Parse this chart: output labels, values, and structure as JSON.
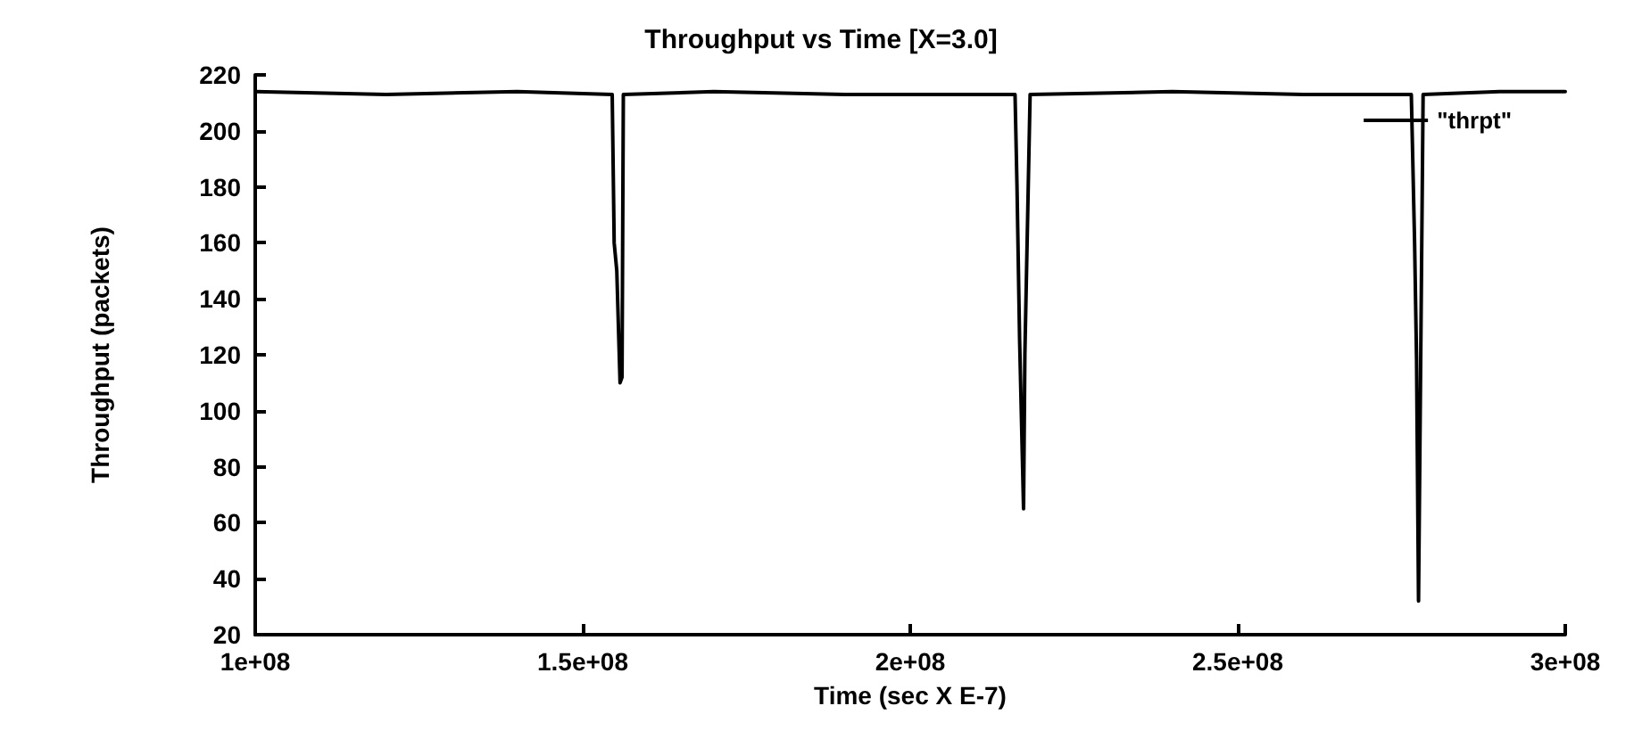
{
  "chart_data": {
    "type": "line",
    "title": "Throughput vs Time [X=3.0]",
    "xlabel": "Time (sec X E-7)",
    "ylabel": "Throughput (packets)",
    "xlim": [
      100000000,
      300000000
    ],
    "xticks": [
      {
        "value": 100000000,
        "label": "1e+08"
      },
      {
        "value": 150000000,
        "label": "1.5e+08"
      },
      {
        "value": 200000000,
        "label": "2e+08"
      },
      {
        "value": 250000000,
        "label": "2.5e+08"
      },
      {
        "value": 300000000,
        "label": "3e+08"
      }
    ],
    "ylim": [
      20,
      220
    ],
    "yticks": [
      20,
      40,
      60,
      80,
      100,
      120,
      140,
      160,
      180,
      200,
      220
    ],
    "grid": false,
    "legend": "top right",
    "marker": "none",
    "line_style": "solid",
    "series": [
      {
        "name": "\"thrpt\"",
        "color": "#000000",
        "x": [
          100000000,
          120000000,
          140000000,
          154500000,
          154800000,
          155200000,
          155700000,
          156000000,
          156200000,
          170000000,
          190000000,
          216000000,
          216300000,
          216700000,
          217300000,
          217500000,
          218300000,
          240000000,
          260000000,
          276500000,
          277000000,
          277300000,
          277600000,
          277900000,
          278300000,
          290000000,
          300000000
        ],
        "values": [
          214,
          213,
          214,
          213,
          160,
          150,
          110,
          112,
          213,
          214,
          213,
          213,
          180,
          125,
          65,
          120,
          213,
          214,
          213,
          213,
          160,
          118,
          32,
          110,
          213,
          214,
          214
        ]
      }
    ]
  }
}
